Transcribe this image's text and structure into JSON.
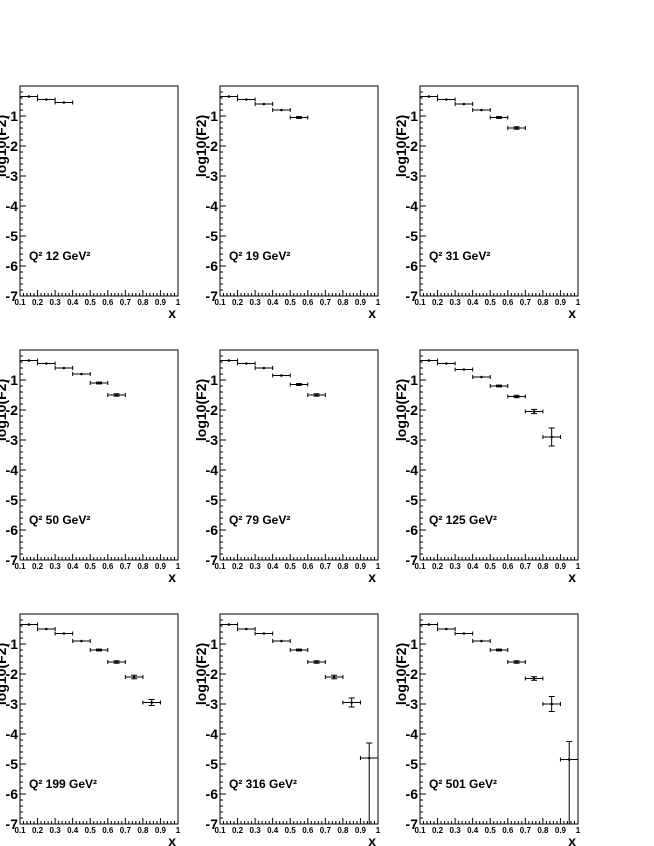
{
  "axis": {
    "x_label": "x",
    "y_label": "log10(F2)",
    "x_ticks": [
      "0.1",
      "0.2",
      "0.3",
      "0.4",
      "0.5",
      "0.6",
      "0.7",
      "0.8",
      "0.9",
      "1"
    ],
    "y_ticks": [
      "-1",
      "-2",
      "-3",
      "-4",
      "-5",
      "-6",
      "-7"
    ]
  },
  "chart_data": [
    {
      "type": "scatter",
      "label": "Q² 12 GeV²",
      "xlim": [
        0.1,
        1.0
      ],
      "ylim": [
        -7,
        0
      ],
      "points": [
        {
          "x": 0.15,
          "xerr": 0.05,
          "y": -0.35,
          "yerr": 0.02
        },
        {
          "x": 0.25,
          "xerr": 0.05,
          "y": -0.45,
          "yerr": 0.02
        },
        {
          "x": 0.35,
          "xerr": 0.05,
          "y": -0.55,
          "yerr": 0.02
        }
      ]
    },
    {
      "type": "scatter",
      "label": "Q² 19 GeV²",
      "xlim": [
        0.1,
        1.0
      ],
      "ylim": [
        -7,
        0
      ],
      "points": [
        {
          "x": 0.15,
          "xerr": 0.05,
          "y": -0.35,
          "yerr": 0.02
        },
        {
          "x": 0.25,
          "xerr": 0.05,
          "y": -0.45,
          "yerr": 0.02
        },
        {
          "x": 0.35,
          "xerr": 0.05,
          "y": -0.6,
          "yerr": 0.02
        },
        {
          "x": 0.45,
          "xerr": 0.05,
          "y": -0.8,
          "yerr": 0.02
        },
        {
          "x": 0.55,
          "xerr": 0.05,
          "y": -1.05,
          "yerr": 0.03
        }
      ]
    },
    {
      "type": "scatter",
      "label": "Q² 31 GeV²",
      "xlim": [
        0.1,
        1.0
      ],
      "ylim": [
        -7,
        0
      ],
      "points": [
        {
          "x": 0.15,
          "xerr": 0.05,
          "y": -0.35,
          "yerr": 0.02
        },
        {
          "x": 0.25,
          "xerr": 0.05,
          "y": -0.45,
          "yerr": 0.02
        },
        {
          "x": 0.35,
          "xerr": 0.05,
          "y": -0.6,
          "yerr": 0.02
        },
        {
          "x": 0.45,
          "xerr": 0.05,
          "y": -0.8,
          "yerr": 0.02
        },
        {
          "x": 0.55,
          "xerr": 0.05,
          "y": -1.05,
          "yerr": 0.03
        },
        {
          "x": 0.65,
          "xerr": 0.05,
          "y": -1.4,
          "yerr": 0.04
        }
      ]
    },
    {
      "type": "scatter",
      "label": "Q² 50 GeV²",
      "xlim": [
        0.1,
        1.0
      ],
      "ylim": [
        -7,
        0
      ],
      "points": [
        {
          "x": 0.15,
          "xerr": 0.05,
          "y": -0.35,
          "yerr": 0.02
        },
        {
          "x": 0.25,
          "xerr": 0.05,
          "y": -0.45,
          "yerr": 0.02
        },
        {
          "x": 0.35,
          "xerr": 0.05,
          "y": -0.6,
          "yerr": 0.02
        },
        {
          "x": 0.45,
          "xerr": 0.05,
          "y": -0.8,
          "yerr": 0.02
        },
        {
          "x": 0.55,
          "xerr": 0.05,
          "y": -1.1,
          "yerr": 0.03
        },
        {
          "x": 0.65,
          "xerr": 0.05,
          "y": -1.5,
          "yerr": 0.04
        }
      ]
    },
    {
      "type": "scatter",
      "label": "Q² 79 GeV²",
      "xlim": [
        0.1,
        1.0
      ],
      "ylim": [
        -7,
        0
      ],
      "points": [
        {
          "x": 0.15,
          "xerr": 0.05,
          "y": -0.35,
          "yerr": 0.02
        },
        {
          "x": 0.25,
          "xerr": 0.05,
          "y": -0.45,
          "yerr": 0.02
        },
        {
          "x": 0.35,
          "xerr": 0.05,
          "y": -0.6,
          "yerr": 0.02
        },
        {
          "x": 0.45,
          "xerr": 0.05,
          "y": -0.85,
          "yerr": 0.02
        },
        {
          "x": 0.55,
          "xerr": 0.05,
          "y": -1.15,
          "yerr": 0.03
        },
        {
          "x": 0.65,
          "xerr": 0.05,
          "y": -1.5,
          "yerr": 0.04
        }
      ]
    },
    {
      "type": "scatter",
      "label": "Q² 125 GeV²",
      "xlim": [
        0.1,
        1.0
      ],
      "ylim": [
        -7,
        0
      ],
      "points": [
        {
          "x": 0.15,
          "xerr": 0.05,
          "y": -0.35,
          "yerr": 0.02
        },
        {
          "x": 0.25,
          "xerr": 0.05,
          "y": -0.45,
          "yerr": 0.02
        },
        {
          "x": 0.35,
          "xerr": 0.05,
          "y": -0.65,
          "yerr": 0.02
        },
        {
          "x": 0.45,
          "xerr": 0.05,
          "y": -0.9,
          "yerr": 0.02
        },
        {
          "x": 0.55,
          "xerr": 0.05,
          "y": -1.2,
          "yerr": 0.03
        },
        {
          "x": 0.65,
          "xerr": 0.05,
          "y": -1.55,
          "yerr": 0.04
        },
        {
          "x": 0.75,
          "xerr": 0.05,
          "y": -2.05,
          "yerr": 0.07
        },
        {
          "x": 0.85,
          "xerr": 0.05,
          "y": -2.9,
          "yerr": 0.3
        }
      ]
    },
    {
      "type": "scatter",
      "label": "Q² 199 GeV²",
      "xlim": [
        0.1,
        1.0
      ],
      "ylim": [
        -7,
        0
      ],
      "points": [
        {
          "x": 0.15,
          "xerr": 0.05,
          "y": -0.35,
          "yerr": 0.02
        },
        {
          "x": 0.25,
          "xerr": 0.05,
          "y": -0.5,
          "yerr": 0.02
        },
        {
          "x": 0.35,
          "xerr": 0.05,
          "y": -0.65,
          "yerr": 0.02
        },
        {
          "x": 0.45,
          "xerr": 0.05,
          "y": -0.9,
          "yerr": 0.02
        },
        {
          "x": 0.55,
          "xerr": 0.05,
          "y": -1.2,
          "yerr": 0.03
        },
        {
          "x": 0.65,
          "xerr": 0.05,
          "y": -1.6,
          "yerr": 0.04
        },
        {
          "x": 0.75,
          "xerr": 0.05,
          "y": -2.1,
          "yerr": 0.06
        },
        {
          "x": 0.85,
          "xerr": 0.05,
          "y": -2.95,
          "yerr": 0.1
        }
      ]
    },
    {
      "type": "scatter",
      "label": "Q² 316 GeV²",
      "xlim": [
        0.1,
        1.0
      ],
      "ylim": [
        -7,
        0
      ],
      "points": [
        {
          "x": 0.15,
          "xerr": 0.05,
          "y": -0.35,
          "yerr": 0.02
        },
        {
          "x": 0.25,
          "xerr": 0.05,
          "y": -0.5,
          "yerr": 0.02
        },
        {
          "x": 0.35,
          "xerr": 0.05,
          "y": -0.65,
          "yerr": 0.02
        },
        {
          "x": 0.45,
          "xerr": 0.05,
          "y": -0.9,
          "yerr": 0.02
        },
        {
          "x": 0.55,
          "xerr": 0.05,
          "y": -1.2,
          "yerr": 0.03
        },
        {
          "x": 0.65,
          "xerr": 0.05,
          "y": -1.6,
          "yerr": 0.04
        },
        {
          "x": 0.75,
          "xerr": 0.05,
          "y": -2.1,
          "yerr": 0.06
        },
        {
          "x": 0.85,
          "xerr": 0.05,
          "y": -2.95,
          "yerr": 0.15
        },
        {
          "x": 0.95,
          "xerr": 0.05,
          "y": -4.8,
          "yerr": 0.5,
          "yerr_low": 2.2
        }
      ]
    },
    {
      "type": "scatter",
      "label": "Q² 501 GeV²",
      "xlim": [
        0.1,
        1.0
      ],
      "ylim": [
        -7,
        0
      ],
      "points": [
        {
          "x": 0.15,
          "xerr": 0.05,
          "y": -0.35,
          "yerr": 0.02
        },
        {
          "x": 0.25,
          "xerr": 0.05,
          "y": -0.5,
          "yerr": 0.02
        },
        {
          "x": 0.35,
          "xerr": 0.05,
          "y": -0.65,
          "yerr": 0.02
        },
        {
          "x": 0.45,
          "xerr": 0.05,
          "y": -0.9,
          "yerr": 0.02
        },
        {
          "x": 0.55,
          "xerr": 0.05,
          "y": -1.2,
          "yerr": 0.03
        },
        {
          "x": 0.65,
          "xerr": 0.05,
          "y": -1.6,
          "yerr": 0.04
        },
        {
          "x": 0.75,
          "xerr": 0.05,
          "y": -2.15,
          "yerr": 0.06
        },
        {
          "x": 0.85,
          "xerr": 0.05,
          "y": -3.0,
          "yerr": 0.25
        },
        {
          "x": 0.95,
          "xerr": 0.05,
          "y": -4.85,
          "yerr": 0.6,
          "yerr_low": 2.15
        }
      ]
    }
  ]
}
